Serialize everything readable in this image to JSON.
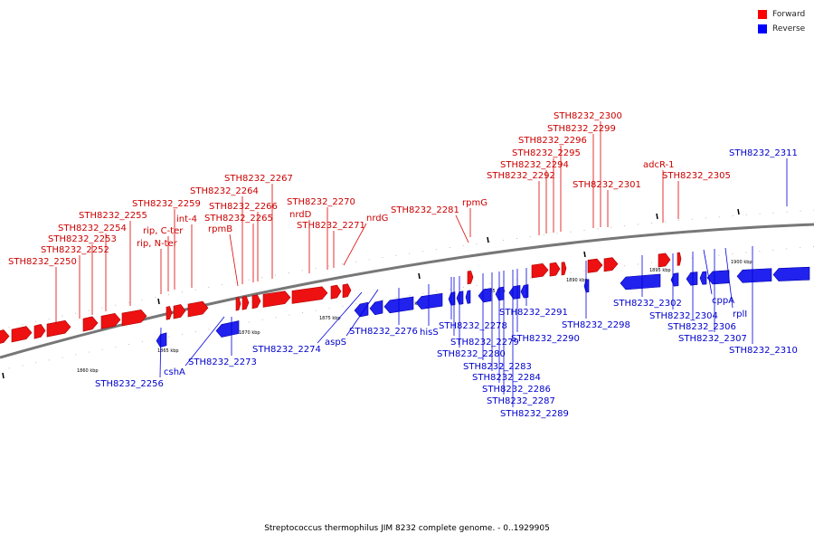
{
  "legend": {
    "forward_label": "Forward",
    "reverse_label": "Reverse",
    "forward_color": "#ff0000",
    "reverse_color": "#0000ff"
  },
  "footer": "Streptococcus thermophilus JIM 8232 complete genome. - 0..1929905",
  "axis": {
    "unit": "kbp",
    "ticks_kbp": [
      1860,
      1865,
      1870,
      1875,
      1880,
      1885,
      1890,
      1895,
      1900
    ]
  },
  "forward_labels": [
    "STH8232_2250",
    "STH8232_2252",
    "STH8232_2253",
    "STH8232_2254",
    "STH8232_2255",
    "rip, N-ter",
    "rip, C-ter",
    "STH8232_2259",
    "int-4",
    "rpmB",
    "STH8232_2264",
    "STH8232_2265",
    "STH8232_2266",
    "STH8232_2267",
    "nrdD",
    "STH8232_2270",
    "STH8232_2271",
    "nrdG",
    "STH8232_2281",
    "rpmG",
    "STH8232_2292",
    "STH8232_2294",
    "STH8232_2295",
    "STH8232_2296",
    "STH8232_2299",
    "STH8232_2300",
    "STH8232_2301",
    "adcR-1",
    "STH8232_2305"
  ],
  "reverse_labels": [
    "STH8232_2256",
    "cshA",
    "STH8232_2273",
    "STH8232_2274",
    "aspS",
    "STH8232_2276",
    "hisS",
    "STH8232_2278",
    "STH8232_2279",
    "STH8232_2280",
    "STH8232_2283",
    "STH8232_2284",
    "STH8232_2286",
    "STH8232_2287",
    "STH8232_2289",
    "STH8232_2290",
    "STH8232_2291",
    "STH8232_2298",
    "STH8232_2302",
    "STH8232_2304",
    "STH8232_2306",
    "cppA",
    "STH8232_2307",
    "rplI",
    "STH8232_2310",
    "STH8232_2311"
  ]
}
